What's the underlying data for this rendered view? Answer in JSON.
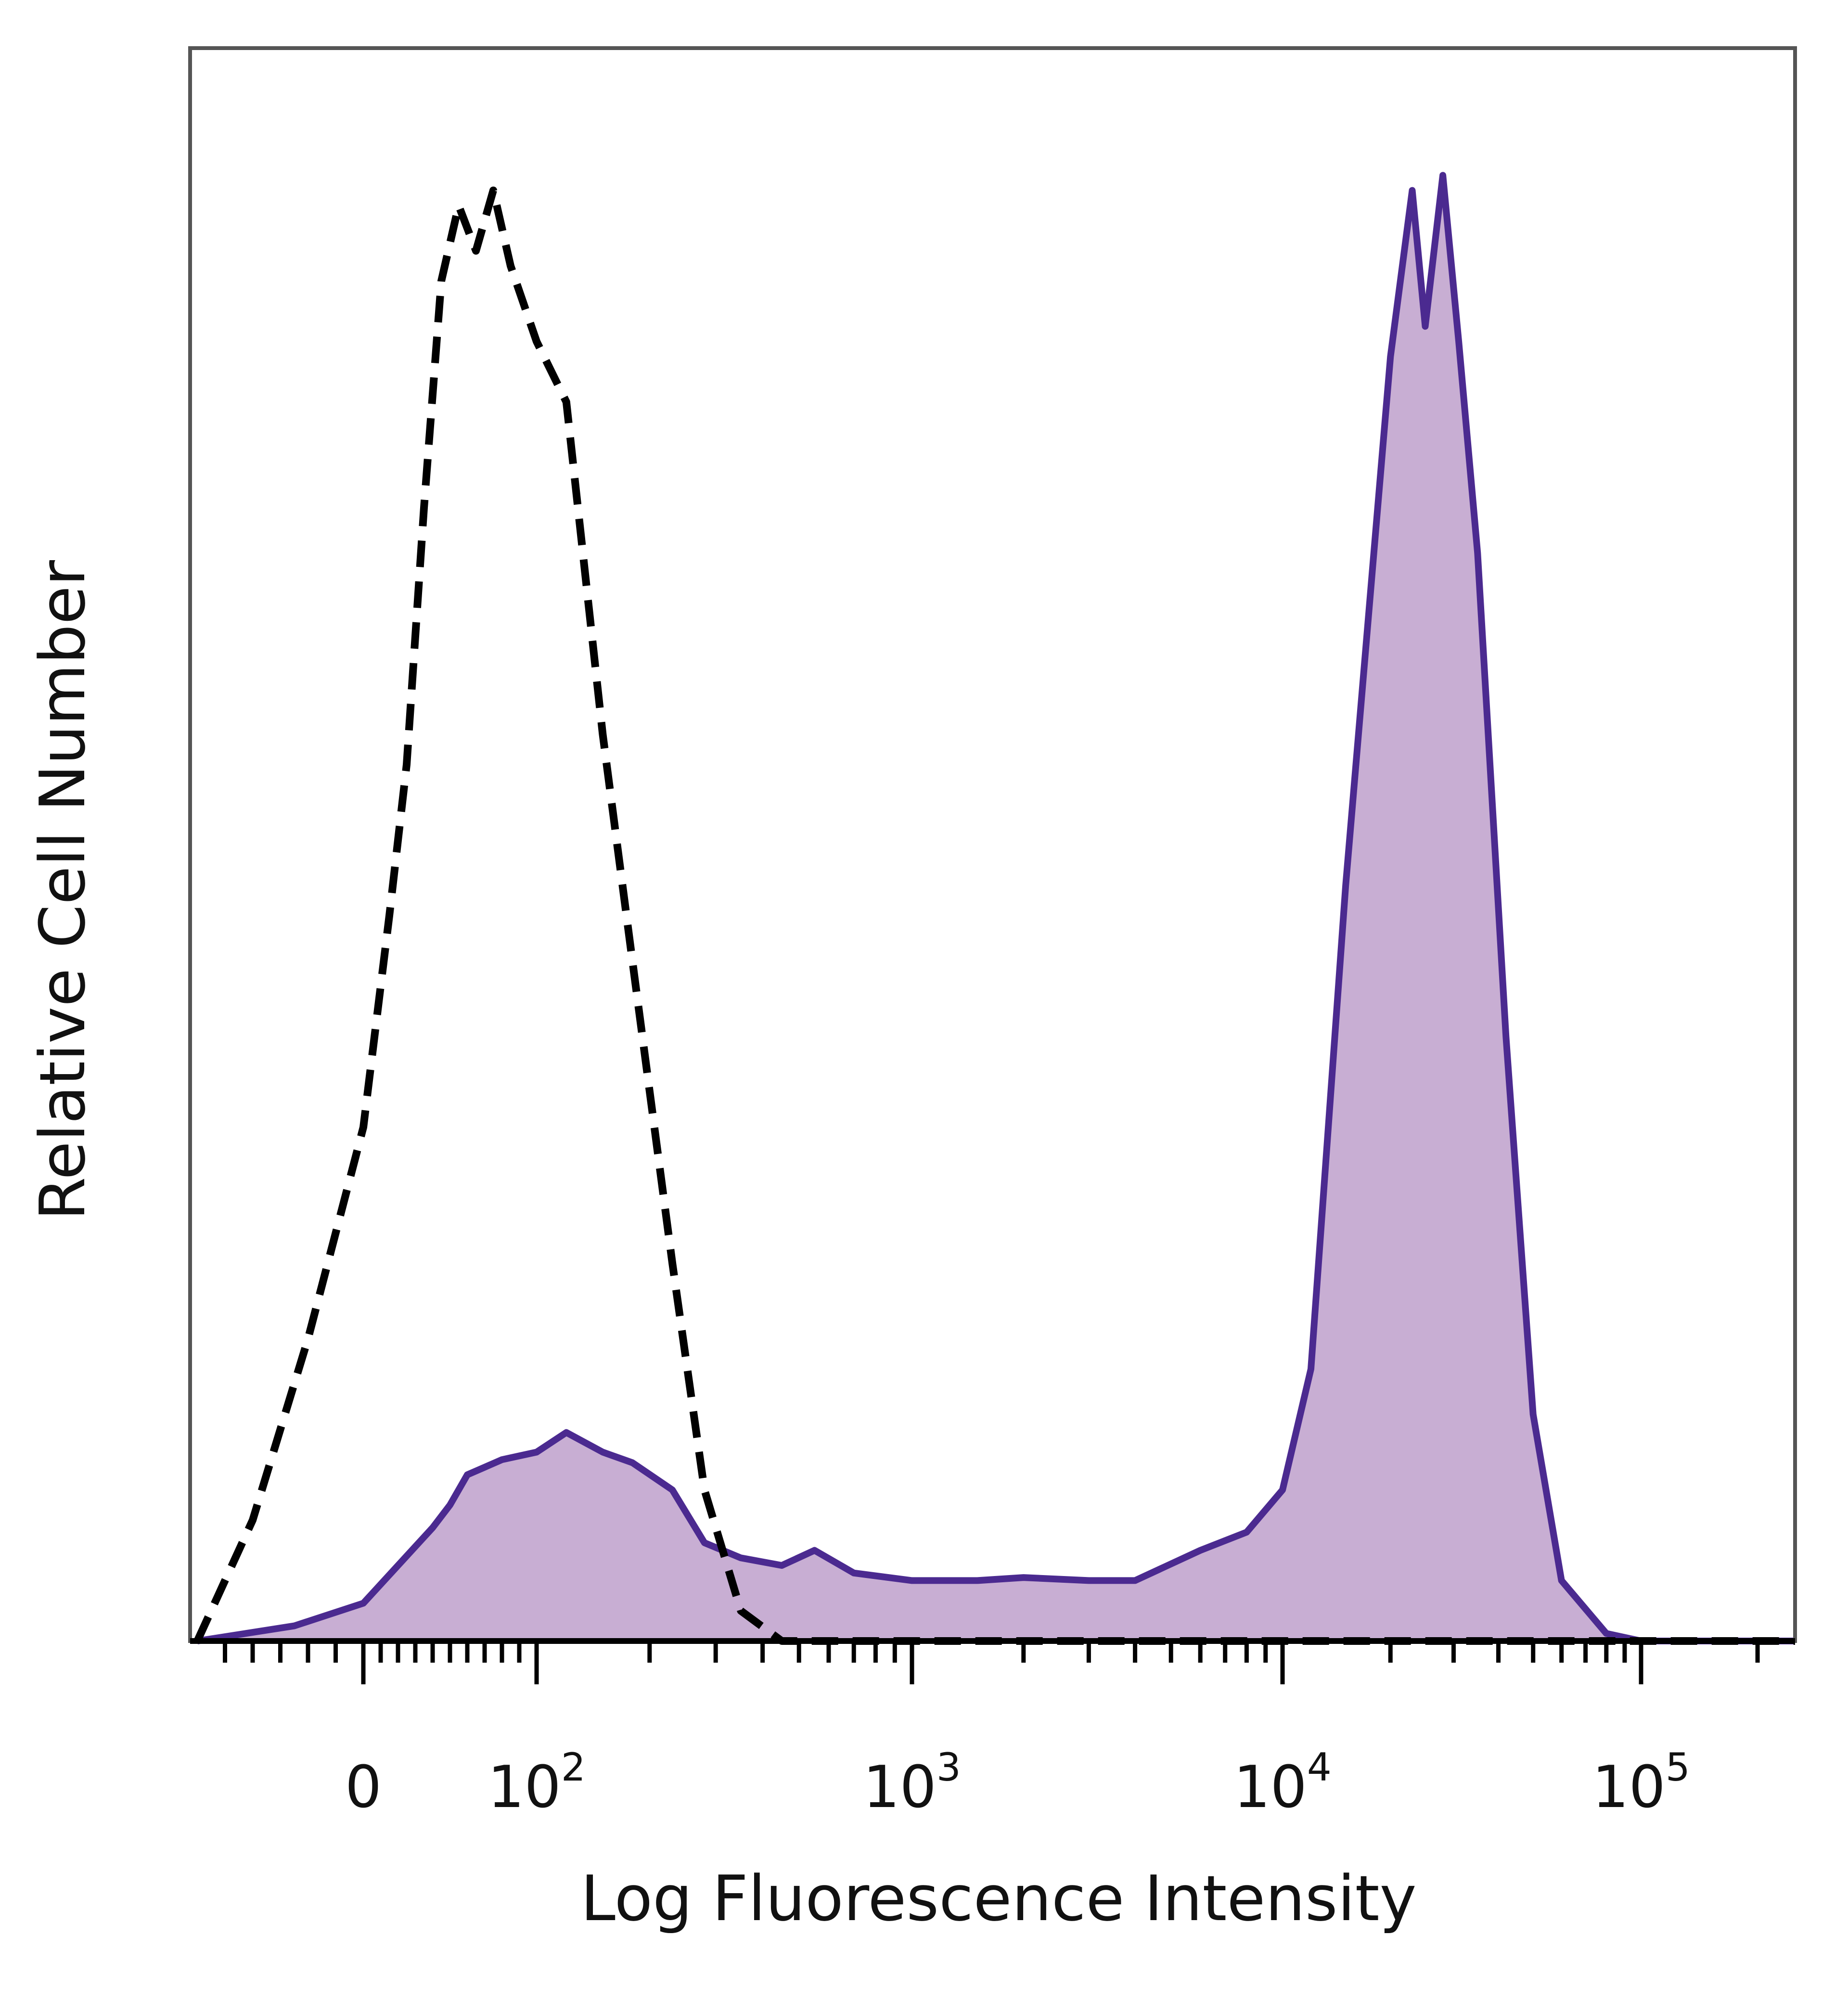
{
  "chart_data": {
    "type": "area",
    "title": "",
    "xlabel": "Log Fluorescence Intensity",
    "ylabel": "Relative Cell Number",
    "xscale": "biexponential",
    "xlim": [
      -60,
      250000
    ],
    "ylim": [
      0,
      1.0
    ],
    "grid": false,
    "legend": "none",
    "x_ticks": [
      {
        "value": 0,
        "label": "0"
      },
      {
        "value": 100,
        "base": "10",
        "exp": "2"
      },
      {
        "value": 1000,
        "base": "10",
        "exp": "3"
      },
      {
        "value": 10000,
        "base": "10",
        "exp": "4"
      },
      {
        "value": 100000,
        "base": "10",
        "exp": "5"
      }
    ],
    "colors": {
      "stained_fill": "#c8aed3",
      "stained_line": "#4b2a90",
      "control_line": "#000000",
      "frame": "#000000"
    },
    "series": [
      {
        "style": "filled-solid",
        "points": [
          [
            -60,
            0.0
          ],
          [
            -25,
            0.01
          ],
          [
            0,
            0.025
          ],
          [
            20,
            0.05
          ],
          [
            40,
            0.075
          ],
          [
            50,
            0.09
          ],
          [
            60,
            0.11
          ],
          [
            70,
            0.115
          ],
          [
            80,
            0.12
          ],
          [
            100,
            0.125
          ],
          [
            120,
            0.138
          ],
          [
            150,
            0.125
          ],
          [
            180,
            0.118
          ],
          [
            230,
            0.1
          ],
          [
            280,
            0.065
          ],
          [
            350,
            0.055
          ],
          [
            450,
            0.05
          ],
          [
            550,
            0.06
          ],
          [
            700,
            0.045
          ],
          [
            1000,
            0.04
          ],
          [
            1500,
            0.04
          ],
          [
            2000,
            0.042
          ],
          [
            3000,
            0.04
          ],
          [
            4000,
            0.04
          ],
          [
            6000,
            0.06
          ],
          [
            8000,
            0.072
          ],
          [
            10000,
            0.1
          ],
          [
            12000,
            0.18
          ],
          [
            15000,
            0.5
          ],
          [
            20000,
            0.85
          ],
          [
            23000,
            0.96
          ],
          [
            25000,
            0.87
          ],
          [
            28000,
            0.97
          ],
          [
            31000,
            0.86
          ],
          [
            35000,
            0.72
          ],
          [
            42000,
            0.4
          ],
          [
            50000,
            0.15
          ],
          [
            60000,
            0.04
          ],
          [
            80000,
            0.005
          ],
          [
            100000,
            0.0
          ],
          [
            250000,
            0.0
          ]
        ]
      },
      {
        "style": "dashed",
        "points": [
          [
            -60,
            0.0
          ],
          [
            -40,
            0.08
          ],
          [
            -20,
            0.2
          ],
          [
            0,
            0.34
          ],
          [
            15,
            0.48
          ],
          [
            25,
            0.58
          ],
          [
            35,
            0.75
          ],
          [
            45,
            0.9
          ],
          [
            55,
            0.95
          ],
          [
            65,
            0.92
          ],
          [
            75,
            0.96
          ],
          [
            85,
            0.91
          ],
          [
            100,
            0.86
          ],
          [
            120,
            0.82
          ],
          [
            150,
            0.6
          ],
          [
            180,
            0.45
          ],
          [
            230,
            0.25
          ],
          [
            280,
            0.1
          ],
          [
            350,
            0.02
          ],
          [
            450,
            0.0
          ],
          [
            250000,
            0.0
          ]
        ]
      }
    ]
  }
}
